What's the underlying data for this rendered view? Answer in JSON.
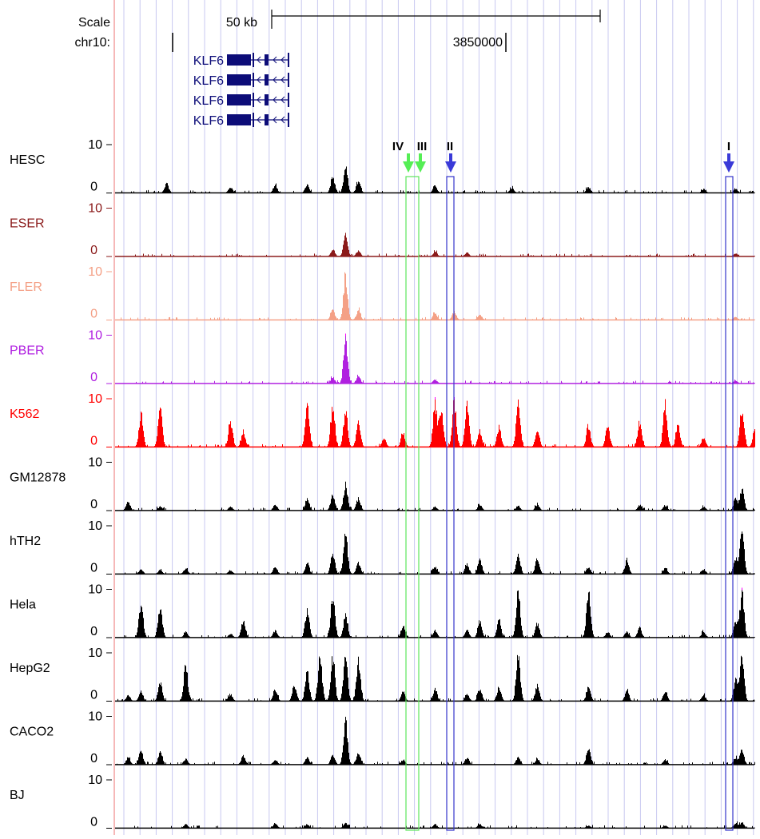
{
  "ruler": {
    "scale_label": "Scale",
    "chrom_label": "chr10:",
    "scale_bar_label": "50 kb",
    "position_label": "3850000"
  },
  "genes": [
    {
      "name": "KLF6"
    },
    {
      "name": "KLF6"
    },
    {
      "name": "KLF6"
    },
    {
      "name": "KLF6"
    }
  ],
  "colors": {
    "ruler_line": "#000000",
    "gene": "#0c0c78",
    "grid": "#c8c8f0",
    "left_border": "#f4a0a0",
    "highlight_green": "#5ce65c",
    "highlight_blue": "#3535cc",
    "arrow_green": "#55ee55",
    "arrow_blue": "#3a3ad8",
    "clip_marker": "#ff00ff"
  },
  "tracks": [
    {
      "name": "HESC",
      "color": "#000000",
      "max_label": "10",
      "min_label": "0",
      "peaks": [
        [
          0.08,
          0.2
        ],
        [
          0.18,
          0.12
        ],
        [
          0.25,
          0.15
        ],
        [
          0.3,
          0.18
        ],
        [
          0.34,
          0.35
        ],
        [
          0.36,
          0.55
        ],
        [
          0.38,
          0.25
        ],
        [
          0.5,
          0.15
        ],
        [
          0.62,
          0.1
        ],
        [
          0.74,
          0.12
        ],
        [
          0.92,
          0.08
        ],
        [
          0.97,
          0.08
        ]
      ]
    },
    {
      "name": "ESER",
      "color": "#8b1a1a",
      "max_label": "10",
      "min_label": "0",
      "peaks": [
        [
          0.34,
          0.15
        ],
        [
          0.36,
          0.45
        ],
        [
          0.38,
          0.12
        ],
        [
          0.5,
          0.1
        ],
        [
          0.55,
          0.08
        ],
        [
          0.97,
          0.06
        ]
      ]
    },
    {
      "name": "FLER",
      "color": "#f4a086",
      "max_label": "10",
      "min_label": "0",
      "peaks": [
        [
          0.34,
          0.2
        ],
        [
          0.36,
          0.95
        ],
        [
          0.38,
          0.2
        ],
        [
          0.5,
          0.15
        ],
        [
          0.53,
          0.18
        ],
        [
          0.57,
          0.12
        ],
        [
          0.97,
          0.06
        ]
      ]
    },
    {
      "name": "PBER",
      "color": "#b020e0",
      "max_label": "10",
      "min_label": "0",
      "peaks": [
        [
          0.34,
          0.12
        ],
        [
          0.36,
          0.95
        ],
        [
          0.38,
          0.15
        ],
        [
          0.5,
          0.08
        ],
        [
          0.97,
          0.06
        ]
      ]
    },
    {
      "name": "K562",
      "color": "#ff0000",
      "max_label": "10",
      "min_label": "0",
      "peaks": [
        [
          0.04,
          0.7
        ],
        [
          0.07,
          0.8
        ],
        [
          0.18,
          0.55
        ],
        [
          0.2,
          0.3
        ],
        [
          0.3,
          0.95
        ],
        [
          0.34,
          0.9
        ],
        [
          0.36,
          0.75
        ],
        [
          0.38,
          0.5
        ],
        [
          0.42,
          0.18
        ],
        [
          0.45,
          0.3
        ],
        [
          0.5,
          0.95
        ],
        [
          0.51,
          0.8
        ],
        [
          0.53,
          0.95
        ],
        [
          0.55,
          0.9
        ],
        [
          0.57,
          0.35
        ],
        [
          0.6,
          0.4
        ],
        [
          0.63,
          0.95
        ],
        [
          0.66,
          0.35
        ],
        [
          0.74,
          0.45
        ],
        [
          0.77,
          0.45
        ],
        [
          0.82,
          0.55
        ],
        [
          0.86,
          0.9
        ],
        [
          0.88,
          0.5
        ],
        [
          0.92,
          0.2
        ],
        [
          0.98,
          0.85
        ],
        [
          1.0,
          0.35
        ]
      ]
    },
    {
      "name": "GM12878",
      "color": "#000000",
      "max_label": "10",
      "min_label": "0",
      "peaks": [
        [
          0.02,
          0.18
        ],
        [
          0.07,
          0.08
        ],
        [
          0.18,
          0.08
        ],
        [
          0.25,
          0.12
        ],
        [
          0.3,
          0.25
        ],
        [
          0.34,
          0.35
        ],
        [
          0.36,
          0.55
        ],
        [
          0.38,
          0.25
        ],
        [
          0.5,
          0.08
        ],
        [
          0.57,
          0.12
        ],
        [
          0.63,
          0.1
        ],
        [
          0.66,
          0.12
        ],
        [
          0.82,
          0.12
        ],
        [
          0.86,
          0.1
        ],
        [
          0.92,
          0.08
        ],
        [
          0.97,
          0.25
        ],
        [
          0.98,
          0.45
        ]
      ]
    },
    {
      "name": "hTH2",
      "color": "#000000",
      "max_label": "10",
      "min_label": "0",
      "peaks": [
        [
          0.04,
          0.1
        ],
        [
          0.07,
          0.08
        ],
        [
          0.11,
          0.12
        ],
        [
          0.18,
          0.08
        ],
        [
          0.25,
          0.15
        ],
        [
          0.3,
          0.2
        ],
        [
          0.34,
          0.45
        ],
        [
          0.36,
          0.9
        ],
        [
          0.38,
          0.25
        ],
        [
          0.5,
          0.15
        ],
        [
          0.55,
          0.2
        ],
        [
          0.57,
          0.3
        ],
        [
          0.63,
          0.45
        ],
        [
          0.66,
          0.35
        ],
        [
          0.74,
          0.15
        ],
        [
          0.8,
          0.28
        ],
        [
          0.86,
          0.12
        ],
        [
          0.92,
          0.1
        ],
        [
          0.97,
          0.35
        ],
        [
          0.98,
          0.95
        ]
      ]
    },
    {
      "name": "Hela",
      "color": "#000000",
      "max_label": "10",
      "min_label": "0",
      "peaks": [
        [
          0.04,
          0.75
        ],
        [
          0.07,
          0.65
        ],
        [
          0.11,
          0.1
        ],
        [
          0.18,
          0.08
        ],
        [
          0.2,
          0.35
        ],
        [
          0.25,
          0.15
        ],
        [
          0.3,
          0.6
        ],
        [
          0.34,
          0.9
        ],
        [
          0.36,
          0.5
        ],
        [
          0.45,
          0.25
        ],
        [
          0.5,
          0.15
        ],
        [
          0.55,
          0.15
        ],
        [
          0.57,
          0.35
        ],
        [
          0.6,
          0.35
        ],
        [
          0.63,
          0.95
        ],
        [
          0.66,
          0.3
        ],
        [
          0.74,
          0.95
        ],
        [
          0.77,
          0.12
        ],
        [
          0.8,
          0.12
        ],
        [
          0.82,
          0.2
        ],
        [
          0.92,
          0.12
        ],
        [
          0.97,
          0.35
        ],
        [
          0.98,
          0.95
        ]
      ]
    },
    {
      "name": "HepG2",
      "color": "#000000",
      "max_label": "10",
      "min_label": "0",
      "peaks": [
        [
          0.02,
          0.12
        ],
        [
          0.04,
          0.2
        ],
        [
          0.07,
          0.4
        ],
        [
          0.11,
          0.75
        ],
        [
          0.18,
          0.15
        ],
        [
          0.25,
          0.25
        ],
        [
          0.28,
          0.35
        ],
        [
          0.3,
          0.6
        ],
        [
          0.32,
          0.95
        ],
        [
          0.34,
          0.95
        ],
        [
          0.36,
          0.95
        ],
        [
          0.38,
          0.85
        ],
        [
          0.45,
          0.2
        ],
        [
          0.5,
          0.25
        ],
        [
          0.55,
          0.15
        ],
        [
          0.57,
          0.25
        ],
        [
          0.6,
          0.3
        ],
        [
          0.63,
          0.95
        ],
        [
          0.66,
          0.35
        ],
        [
          0.74,
          0.3
        ],
        [
          0.8,
          0.2
        ],
        [
          0.86,
          0.18
        ],
        [
          0.92,
          0.12
        ],
        [
          0.97,
          0.45
        ],
        [
          0.98,
          0.95
        ]
      ]
    },
    {
      "name": "CACO2",
      "color": "#000000",
      "max_label": "10",
      "min_label": "0",
      "peaks": [
        [
          0.02,
          0.15
        ],
        [
          0.04,
          0.3
        ],
        [
          0.07,
          0.25
        ],
        [
          0.11,
          0.12
        ],
        [
          0.2,
          0.2
        ],
        [
          0.25,
          0.1
        ],
        [
          0.3,
          0.15
        ],
        [
          0.34,
          0.2
        ],
        [
          0.36,
          0.95
        ],
        [
          0.38,
          0.25
        ],
        [
          0.45,
          0.1
        ],
        [
          0.55,
          0.15
        ],
        [
          0.63,
          0.15
        ],
        [
          0.66,
          0.12
        ],
        [
          0.74,
          0.35
        ],
        [
          0.86,
          0.1
        ],
        [
          0.97,
          0.15
        ],
        [
          0.98,
          0.3
        ]
      ]
    },
    {
      "name": "BJ",
      "color": "#000000",
      "max_label": "10",
      "min_label": "0",
      "peaks": [
        [
          0.11,
          0.08
        ],
        [
          0.25,
          0.1
        ],
        [
          0.3,
          0.08
        ],
        [
          0.36,
          0.12
        ],
        [
          0.5,
          0.08
        ],
        [
          0.57,
          0.08
        ],
        [
          0.74,
          0.05
        ],
        [
          0.86,
          0.05
        ],
        [
          0.97,
          0.1
        ],
        [
          0.98,
          0.12
        ]
      ]
    }
  ],
  "sites": [
    {
      "label": "I",
      "color_key": "blue",
      "frame": "blue"
    },
    {
      "label": "II",
      "color_key": "blue",
      "frame": "blue"
    },
    {
      "label": "III",
      "color_key": "green",
      "frame": "green"
    },
    {
      "label": "IV",
      "color_key": "green",
      "frame": "green"
    }
  ]
}
